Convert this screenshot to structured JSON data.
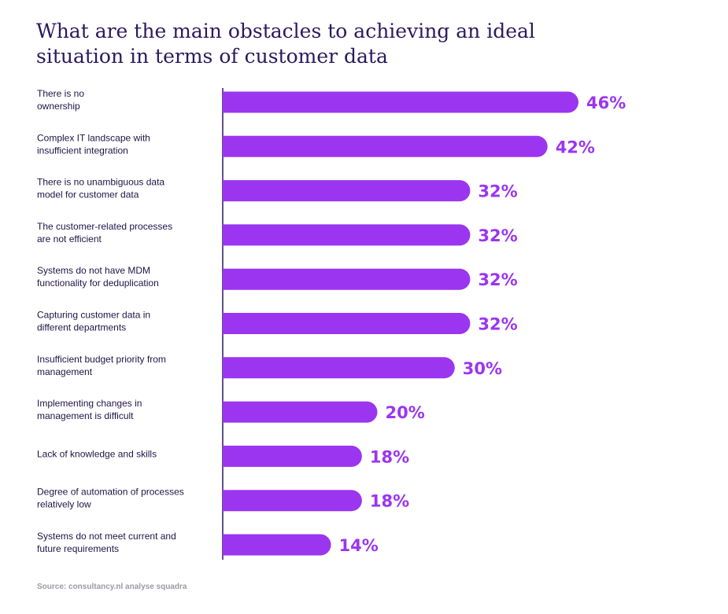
{
  "title_lines": [
    "What are the main obstacles to achieving an ideal",
    "situation in terms of customer data"
  ],
  "source": "Source: consultancy.nl analyse squadra",
  "colors": {
    "bar": "#9b35f0",
    "value_text": "#9b35f0",
    "title": "#2a1a5e",
    "label": "#1f1445",
    "axis": "#2a1a5e",
    "source": "#9a9aa8"
  },
  "chart_data": {
    "type": "bar",
    "orientation": "horizontal",
    "title": "What are the main obstacles to achieving an ideal situation in terms of customer data",
    "unit": "%",
    "xlim": [
      0,
      46
    ],
    "grid": false,
    "legend": false,
    "categories": [
      [
        "There is no",
        "ownership"
      ],
      [
        "Complex IT landscape with",
        "insufficient integration"
      ],
      [
        "There is no unambiguous data",
        "model for customer data"
      ],
      [
        "The customer-related processes",
        "are not efficient"
      ],
      [
        "Systems do not have MDM",
        "functionality for deduplication"
      ],
      [
        "Capturing customer data in",
        "different departments"
      ],
      [
        "Insufficient budget priority from",
        "management"
      ],
      [
        "Implementing changes in",
        "management is difficult"
      ],
      [
        "Lack of knowledge and skills"
      ],
      [
        "Degree of automation of processes",
        "relatively low"
      ],
      [
        "Systems do not meet current and",
        "future requirements"
      ]
    ],
    "values": [
      46,
      42,
      32,
      32,
      32,
      32,
      30,
      20,
      18,
      18,
      14
    ],
    "value_labels": [
      "46%",
      "42%",
      "32%",
      "32%",
      "32%",
      "32%",
      "30%",
      "20%",
      "18%",
      "18%",
      "14%"
    ]
  }
}
